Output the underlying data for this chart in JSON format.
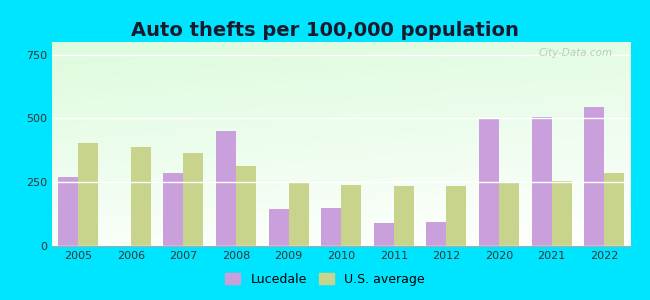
{
  "title": "Auto thefts per 100,000 population",
  "years": [
    2005,
    2006,
    2007,
    2008,
    2009,
    2010,
    2011,
    2012,
    2020,
    2021,
    2022
  ],
  "lucedale": [
    270,
    0,
    285,
    450,
    145,
    150,
    90,
    95,
    500,
    505,
    545
  ],
  "us_average": [
    405,
    390,
    365,
    315,
    250,
    240,
    235,
    235,
    250,
    255,
    285
  ],
  "lucedale_color": "#c9a0dc",
  "us_avg_color": "#c8d48c",
  "bar_width": 0.38,
  "ylim": [
    0,
    800
  ],
  "yticks": [
    0,
    250,
    500,
    750
  ],
  "outer_bg": "#00e5ff",
  "title_fontsize": 14,
  "legend_labels": [
    "Lucedale",
    "U.S. average"
  ],
  "watermark": "City-Data.com"
}
